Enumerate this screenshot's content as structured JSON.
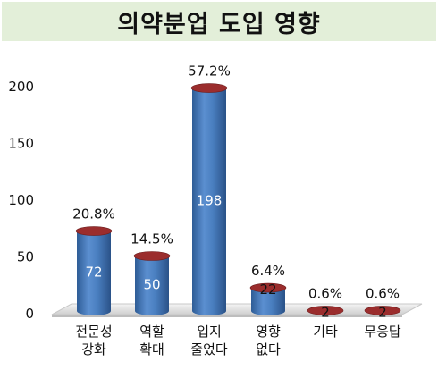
{
  "chart_data": {
    "type": "bar",
    "title": "의약분업 도입 영향",
    "categories": [
      [
        "전문성",
        "강화"
      ],
      [
        "역할",
        "확대"
      ],
      [
        "입지",
        "줄었다"
      ],
      [
        "영향",
        "없다"
      ],
      [
        "기타"
      ],
      [
        "무응답"
      ]
    ],
    "values": [
      72,
      50,
      198,
      22,
      2,
      2
    ],
    "percent_labels": [
      "20.8%",
      "14.5%",
      "57.2%",
      "6.4%",
      "0.6%",
      "0.6%"
    ],
    "yticks": [
      "0",
      "50",
      "100",
      "150",
      "200"
    ],
    "ylim": [
      0,
      200
    ],
    "grid": false,
    "legend": "none",
    "colors": {
      "bar": "#4f81bd",
      "bar_top": "#9b2d2d",
      "title_bg": "#e3efd9"
    }
  }
}
